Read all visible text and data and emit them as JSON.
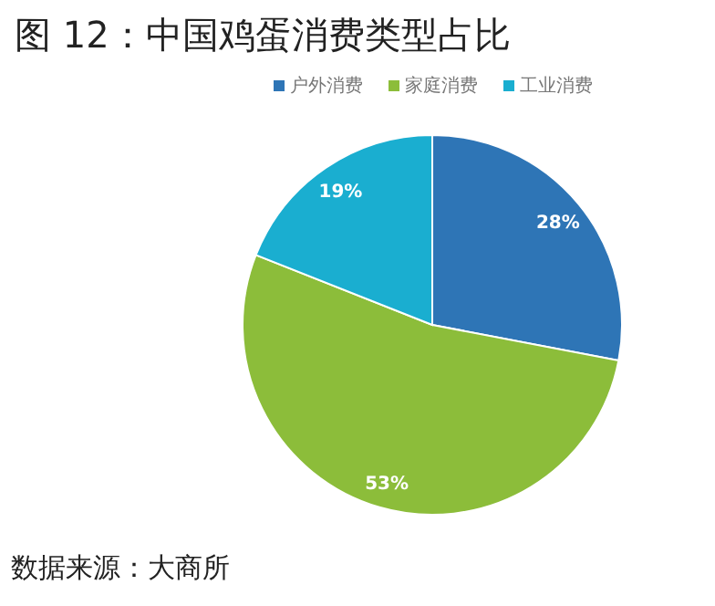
{
  "chart_data": {
    "type": "pie",
    "title": "图 12：中国鸡蛋消费类型占比",
    "categories": [
      "户外消费",
      "家庭消费",
      "工业消费"
    ],
    "values": [
      28,
      53,
      19
    ],
    "colors": [
      "#2e75b6",
      "#8cbd3a",
      "#1aaed0"
    ],
    "value_labels": [
      "28%",
      "53%",
      "19%"
    ],
    "legend": "top",
    "annotations": [
      "数据来源：大商所"
    ]
  }
}
